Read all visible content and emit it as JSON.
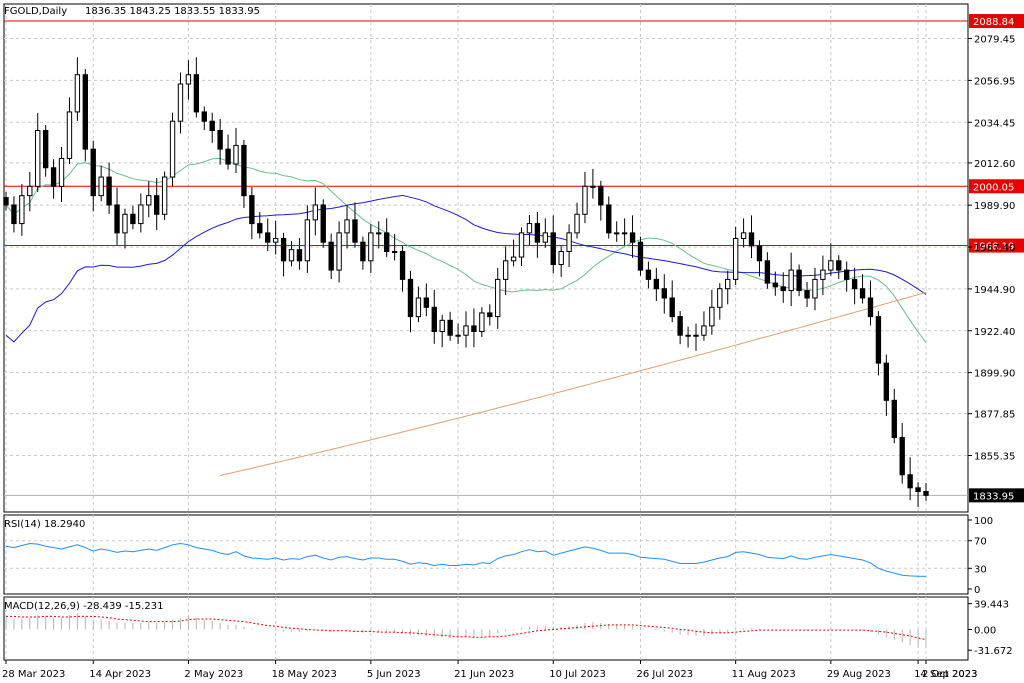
{
  "header": {
    "symbol": "FGOLD,Daily",
    "ohlc": "1836.35 1843.25 1833.55 1833.95"
  },
  "chart_data": [
    {
      "type": "candlestick",
      "title": "FGOLD,Daily  1836.35 1843.25 1833.55 1833.95",
      "ylim": [
        1825,
        2098
      ],
      "y_ticks": [
        "2079.45",
        "2056.95",
        "2034.45",
        "2012.60",
        "1989.90",
        "1967.40",
        "1944.90",
        "1922.40",
        "1899.90",
        "1877.85",
        "1855.35"
      ],
      "x_ticks": [
        "28 Mar 2023",
        "14 Apr 2023",
        "2 May 2023",
        "18 May 2023",
        "5 Jun 2023",
        "21 Jun 2023",
        "10 Jul 2023",
        "26 Jul 2023",
        "11 Aug 2023",
        "29 Aug 2023",
        "14 Sep 2023",
        "2 Oct 2023"
      ],
      "horizontal_levels": [
        {
          "value": 2088.84,
          "label": "2088.84",
          "color": "#e60000"
        },
        {
          "value": 2000.05,
          "label": "2000.05",
          "color": "#e60000"
        },
        {
          "value": 1968.19,
          "label": "1968.19",
          "color": "#e60000"
        }
      ],
      "current_price": {
        "value": 1833.95,
        "label": "1833.95"
      },
      "closes": [
        1990,
        1980,
        1995,
        2000,
        2030,
        2010,
        2000,
        2015,
        2040,
        2060,
        2020,
        1995,
        2005,
        1990,
        1975,
        1985,
        1980,
        1990,
        1995,
        1985,
        2005,
        2035,
        2055,
        2060,
        2040,
        2035,
        2030,
        2020,
        2012,
        2022,
        1995,
        1980,
        1975,
        1970,
        1972,
        1960,
        1966,
        1960,
        1982,
        1990,
        1970,
        1955,
        1975,
        1982,
        1970,
        1960,
        1975,
        1975,
        1965,
        1965,
        1950,
        1930,
        1940,
        1935,
        1922,
        1928,
        1920,
        1920,
        1925,
        1922,
        1932,
        1930,
        1950,
        1960,
        1962,
        1975,
        1980,
        1970,
        1975,
        1958,
        1965,
        1975,
        1985,
        2000,
        2000,
        1990,
        1975,
        1975,
        1975,
        1970,
        1955,
        1950,
        1945,
        1940,
        1930,
        1920,
        1920,
        1920,
        1925,
        1935,
        1945,
        1950,
        1972,
        1975,
        1968,
        1960,
        1948,
        1946,
        1944,
        1955,
        1944,
        1940,
        1950,
        1955,
        1960,
        1955,
        1950,
        1945,
        1940,
        1930,
        1905,
        1885,
        1865,
        1845,
        1838,
        1836,
        1833.95
      ],
      "series": [
        {
          "name": "",
          "color": "#6bbd89",
          "period": 20
        },
        {
          "name": "",
          "color": "#1c1cc8",
          "period": 50
        },
        {
          "name": "",
          "color": "#e0a070",
          "period": 200
        }
      ]
    },
    {
      "type": "line",
      "title": "RSI(14) 18.2940",
      "ylim": [
        0,
        100
      ],
      "y_ticks": [
        "100",
        "70",
        "30",
        "0"
      ],
      "last": 18.294,
      "values": [
        62,
        60,
        63,
        66,
        65,
        62,
        60,
        58,
        61,
        64,
        60,
        55,
        58,
        56,
        53,
        55,
        54,
        56,
        58,
        56,
        60,
        64,
        66,
        64,
        60,
        58,
        56,
        52,
        50,
        54,
        48,
        45,
        44,
        43,
        45,
        42,
        44,
        43,
        47,
        49,
        45,
        42,
        46,
        47,
        44,
        42,
        45,
        45,
        43,
        43,
        40,
        36,
        38,
        37,
        34,
        36,
        34,
        34,
        36,
        35,
        38,
        37,
        44,
        48,
        50,
        54,
        57,
        54,
        55,
        49,
        52,
        55,
        58,
        61,
        59,
        56,
        52,
        52,
        52,
        50,
        46,
        45,
        44,
        43,
        40,
        37,
        37,
        37,
        39,
        42,
        45,
        47,
        53,
        54,
        52,
        50,
        46,
        45,
        44,
        48,
        44,
        43,
        46,
        48,
        50,
        48,
        46,
        44,
        42,
        38,
        30,
        26,
        23,
        20,
        19,
        18.5,
        18.294
      ]
    },
    {
      "type": "bar",
      "title": "MACD(12,26,9) -28.439 -15.231",
      "ylim": [
        -42,
        45
      ],
      "y_ticks": [
        "39.443",
        "0.00",
        "-31.672"
      ],
      "main_last": -28.439,
      "signal_last": -15.231,
      "macd": [
        18,
        16,
        17,
        18,
        22,
        20,
        18,
        18,
        22,
        25,
        20,
        15,
        15,
        13,
        11,
        11,
        10,
        10,
        11,
        10,
        12,
        15,
        18,
        20,
        18,
        15,
        13,
        10,
        7,
        7,
        4,
        1,
        0,
        -1,
        -1,
        -3,
        -3,
        -4,
        -2,
        -1,
        -2,
        -4,
        -3,
        -3,
        -4,
        -5,
        -4,
        -4,
        -5,
        -5,
        -6,
        -9,
        -9,
        -10,
        -12,
        -12,
        -13,
        -13,
        -12,
        -12,
        -10,
        -10,
        -6,
        -3,
        -1,
        2,
        4,
        4,
        5,
        4,
        4,
        5,
        7,
        10,
        11,
        10,
        8,
        7,
        6,
        5,
        2,
        0,
        -1,
        -3,
        -5,
        -8,
        -9,
        -10,
        -10,
        -8,
        -6,
        -4,
        0,
        2,
        2,
        1,
        0,
        -1,
        -2,
        0,
        -1,
        -2,
        -1,
        0,
        1,
        1,
        0,
        -1,
        -2,
        -4,
        -8,
        -12,
        -16,
        -20,
        -24,
        -27,
        -28.439
      ],
      "signal": [
        20,
        20,
        19,
        19,
        19,
        20,
        20,
        19,
        19,
        20,
        20,
        20,
        19,
        18,
        16,
        15,
        14,
        13,
        12,
        12,
        12,
        12,
        13,
        15,
        16,
        16,
        16,
        15,
        14,
        13,
        12,
        10,
        8,
        6,
        5,
        3,
        2,
        1,
        0,
        -1,
        -1,
        -2,
        -2,
        -2,
        -3,
        -3,
        -3,
        -4,
        -4,
        -4,
        -5,
        -5,
        -6,
        -7,
        -8,
        -9,
        -10,
        -11,
        -11,
        -12,
        -12,
        -11,
        -11,
        -10,
        -8,
        -6,
        -4,
        -2,
        -1,
        0,
        1,
        2,
        3,
        4,
        5,
        6,
        7,
        7,
        7,
        7,
        6,
        5,
        4,
        3,
        2,
        0,
        -1,
        -3,
        -4,
        -5,
        -5,
        -5,
        -4,
        -3,
        -2,
        -1,
        -1,
        -1,
        -1,
        -1,
        -1,
        -1,
        -1,
        -1,
        -1,
        -1,
        -1,
        -1,
        -1,
        -2,
        -3,
        -4,
        -6,
        -8,
        -10,
        -13,
        -15.231
      ]
    }
  ]
}
